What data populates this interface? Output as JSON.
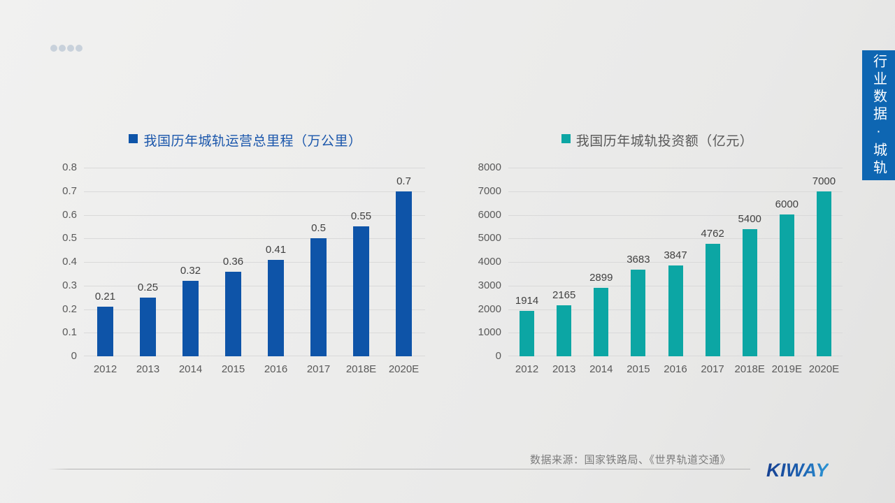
{
  "side_tab": {
    "label": "行业数据·城轨",
    "bg_color": "#0e66b2"
  },
  "footer": {
    "source_note": "数据来源：国家铁路局、《世界轨道交通》",
    "logo_text": "KIWAY"
  },
  "chart_data": [
    {
      "type": "bar",
      "title": "我国历年城轨运营总里程（万公里）",
      "categories": [
        "2012",
        "2013",
        "2014",
        "2015",
        "2016",
        "2017",
        "2018E",
        "2020E"
      ],
      "values": [
        0.21,
        0.25,
        0.32,
        0.36,
        0.41,
        0.5,
        0.55,
        0.7
      ],
      "labels": [
        "0.21",
        "0.25",
        "0.32",
        "0.36",
        "0.41",
        "0.5",
        "0.55",
        "0.7"
      ],
      "ylim": [
        0,
        0.8
      ],
      "ytick_step": 0.1,
      "yticks": [
        "0",
        "0.1",
        "0.2",
        "0.3",
        "0.4",
        "0.5",
        "0.6",
        "0.7",
        "0.8"
      ],
      "grid": true,
      "legend_position": "top",
      "bar_color": "#0e54a8",
      "title_color": "#1a56ab"
    },
    {
      "type": "bar",
      "title": "我国历年城轨投资额（亿元）",
      "categories": [
        "2012",
        "2013",
        "2014",
        "2015",
        "2016",
        "2017",
        "2018E",
        "2019E",
        "2020E"
      ],
      "values": [
        1914,
        2165,
        2899,
        3683,
        3847,
        4762,
        5400,
        6000,
        7000
      ],
      "labels": [
        "1914",
        "2165",
        "2899",
        "3683",
        "3847",
        "4762",
        "5400",
        "6000",
        "7000"
      ],
      "ylim": [
        0,
        8000
      ],
      "ytick_step": 1000,
      "yticks": [
        "0",
        "1000",
        "2000",
        "3000",
        "4000",
        "5000",
        "6000",
        "7000",
        "8000"
      ],
      "grid": true,
      "legend_position": "top",
      "bar_color": "#0ca6a4",
      "title_color": "#595959"
    }
  ]
}
